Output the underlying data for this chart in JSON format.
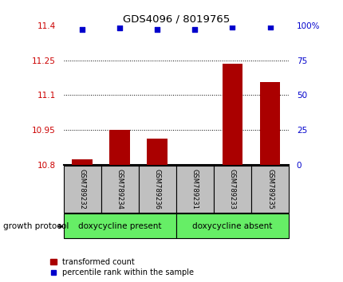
{
  "title": "GDS4096 / 8019765",
  "samples": [
    "GSM789232",
    "GSM789234",
    "GSM789236",
    "GSM789231",
    "GSM789233",
    "GSM789235"
  ],
  "bar_values": [
    10.825,
    10.95,
    10.915,
    10.802,
    11.235,
    11.155
  ],
  "percentile_values": [
    97,
    98,
    97,
    97,
    99,
    99
  ],
  "ylim_left": [
    10.8,
    11.4
  ],
  "ylim_right": [
    0,
    100
  ],
  "yticks_left": [
    10.8,
    10.95,
    11.1,
    11.25,
    11.4
  ],
  "ytick_labels_left": [
    "10.8",
    "10.95",
    "11.1",
    "11.25",
    "11.4"
  ],
  "yticks_right": [
    0,
    25,
    50,
    75,
    100
  ],
  "ytick_labels_right": [
    "0",
    "25",
    "50",
    "75",
    "100%"
  ],
  "hlines": [
    10.95,
    11.1,
    11.25
  ],
  "bar_color": "#aa0000",
  "dot_color": "#0000cc",
  "bar_base": 10.8,
  "group1_label": "doxycycline present",
  "group2_label": "doxycycline absent",
  "group1_indices": [
    0,
    1,
    2
  ],
  "group2_indices": [
    3,
    4,
    5
  ],
  "protocol_label": "growth protocol",
  "legend_bar_label": "transformed count",
  "legend_dot_label": "percentile rank within the sample",
  "tick_color_left": "#cc0000",
  "tick_color_right": "#0000cc",
  "group_bg_color": "#c0c0c0",
  "group1_fill": "#66ee66",
  "group2_fill": "#66ee66"
}
